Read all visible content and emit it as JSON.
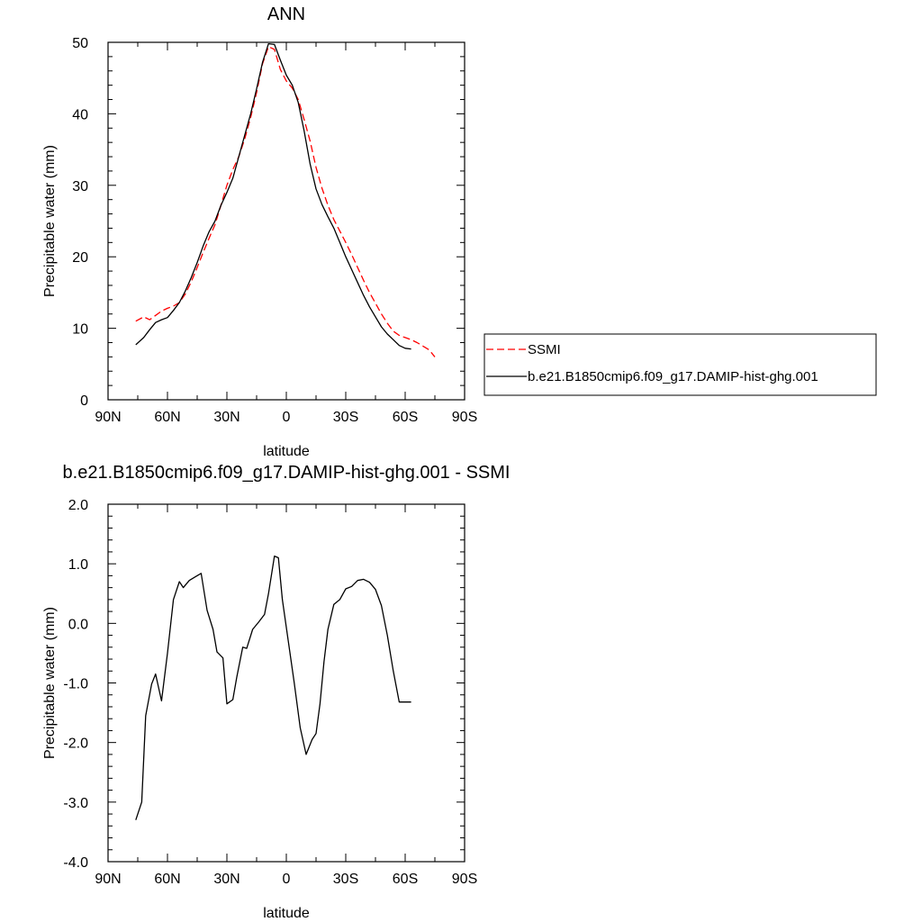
{
  "chart_data": [
    {
      "type": "line",
      "title": "ANN",
      "xlabel": "latitude",
      "ylabel": "Precipitable water (mm)",
      "xlim": [
        90,
        -90
      ],
      "ylim": [
        0,
        50
      ],
      "x_ticks": [
        90,
        60,
        30,
        0,
        -30,
        -60,
        -90
      ],
      "x_tick_labels": [
        "90N",
        "60N",
        "30N",
        "0",
        "30S",
        "60S",
        "90S"
      ],
      "y_ticks": [
        0,
        10,
        20,
        30,
        40,
        50
      ],
      "y_tick_labels": [
        "0",
        "10",
        "20",
        "30",
        "40",
        "50"
      ],
      "grid": false,
      "legend_position": "right",
      "series": [
        {
          "name": "SSMI",
          "color": "#ff0000",
          "dash": "dashed",
          "x": [
            76,
            72,
            69,
            66,
            63,
            60,
            57,
            54,
            51,
            48,
            45,
            42,
            39,
            36,
            33,
            30,
            27,
            24,
            21,
            18,
            15,
            12,
            9,
            6,
            3,
            0,
            -3,
            -6,
            -9,
            -12,
            -15,
            -18,
            -21,
            -24,
            -27,
            -30,
            -33,
            -36,
            -39,
            -42,
            -45,
            -48,
            -51,
            -54,
            -57,
            -60,
            -63,
            -66,
            -69,
            -72,
            -75
          ],
          "y": [
            11.0,
            11.6,
            11.2,
            11.8,
            12.4,
            12.8,
            13.1,
            13.6,
            14.8,
            16.5,
            18.5,
            20.6,
            22.6,
            24.5,
            27.2,
            30.0,
            32.2,
            34.0,
            36.5,
            39.5,
            43.0,
            47.0,
            49.4,
            49.0,
            46.2,
            44.6,
            43.6,
            42.0,
            39.2,
            36.2,
            32.5,
            29.6,
            27.2,
            25.2,
            23.6,
            22.0,
            20.3,
            18.5,
            16.7,
            15.0,
            13.5,
            12.0,
            10.7,
            9.6,
            9.0,
            8.7,
            8.4,
            8.0,
            7.5,
            7.0,
            6.0
          ]
        },
        {
          "name": "b.e21.B1850cmip6.f09_g17.DAMIP-hist-ghg.001",
          "color": "#000000",
          "dash": "solid",
          "x": [
            76,
            72,
            69,
            66,
            63,
            60,
            57,
            54,
            51,
            48,
            45,
            42,
            39,
            36,
            33,
            30,
            27,
            24,
            21,
            18,
            15,
            12,
            9,
            6,
            3,
            0,
            -3,
            -6,
            -9,
            -12,
            -15,
            -18,
            -21,
            -24,
            -27,
            -30,
            -33,
            -36,
            -39,
            -42,
            -45,
            -48,
            -51,
            -54,
            -57,
            -60,
            -63
          ],
          "y": [
            7.7,
            8.7,
            9.8,
            10.8,
            11.2,
            11.5,
            12.5,
            13.6,
            15.2,
            17.1,
            19.2,
            21.5,
            23.5,
            25.0,
            27.2,
            29.0,
            31.0,
            34.0,
            37.0,
            40.0,
            43.5,
            47.2,
            49.8,
            49.7,
            47.5,
            45.4,
            44.0,
            41.6,
            37.6,
            33.0,
            29.5,
            27.3,
            25.6,
            24.0,
            22.0,
            20.0,
            18.2,
            16.4,
            14.6,
            13.0,
            11.6,
            10.2,
            9.2,
            8.4,
            7.6,
            7.2,
            7.1
          ]
        }
      ]
    },
    {
      "type": "line",
      "title": "b.e21.B1850cmip6.f09_g17.DAMIP-hist-ghg.001 - SSMI",
      "xlabel": "latitude",
      "ylabel": "Precipitable water (mm)",
      "xlim": [
        90,
        -90
      ],
      "ylim": [
        -4.0,
        2.0
      ],
      "x_ticks": [
        90,
        60,
        30,
        0,
        -30,
        -60,
        -90
      ],
      "x_tick_labels": [
        "90N",
        "60N",
        "30N",
        "0",
        "30S",
        "60S",
        "90S"
      ],
      "y_ticks": [
        -4.0,
        -3.0,
        -2.0,
        -1.0,
        0.0,
        1.0,
        2.0
      ],
      "y_tick_labels": [
        "-4.0",
        "-3.0",
        "-2.0",
        "-1.0",
        "0.0",
        "1.0",
        "2.0"
      ],
      "grid": false,
      "series": [
        {
          "color": "#000000",
          "dash": "solid",
          "x": [
            76,
            73,
            71,
            68,
            66,
            63,
            60,
            57,
            54,
            52,
            49,
            46,
            43,
            40,
            37,
            35,
            32,
            30,
            27,
            25,
            22,
            20,
            17,
            14,
            11,
            9,
            6,
            4,
            2,
            -1,
            -4,
            -7,
            -10,
            -13,
            -15,
            -17,
            -19,
            -21,
            -24,
            -27,
            -30,
            -33,
            -36,
            -39,
            -42,
            -45,
            -48,
            -51,
            -54,
            -57,
            -60,
            -63
          ],
          "y": [
            -3.3,
            -3.0,
            -1.55,
            -1.02,
            -0.85,
            -1.3,
            -0.5,
            0.4,
            0.7,
            0.6,
            0.72,
            0.78,
            0.84,
            0.22,
            -0.1,
            -0.48,
            -0.58,
            -1.35,
            -1.28,
            -0.9,
            -0.4,
            -0.42,
            -0.1,
            0.02,
            0.15,
            0.5,
            1.13,
            1.1,
            0.4,
            -0.3,
            -1.0,
            -1.75,
            -2.2,
            -1.95,
            -1.85,
            -1.35,
            -0.65,
            -0.1,
            0.32,
            0.4,
            0.58,
            0.62,
            0.72,
            0.74,
            0.69,
            0.57,
            0.3,
            -0.2,
            -0.8,
            -1.32,
            -1.32,
            -1.32
          ]
        }
      ]
    }
  ]
}
